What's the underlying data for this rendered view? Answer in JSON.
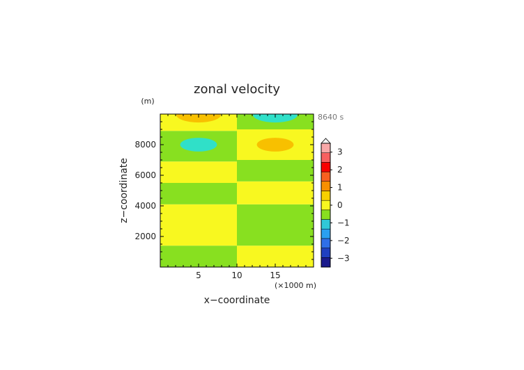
{
  "chart_data": {
    "type": "heatmap",
    "title": "zonal velocity",
    "xlabel": "x−coordinate",
    "ylabel": "z−coordinate",
    "x_unit": "(×1000 m)",
    "y_unit": "(m)",
    "time_label": "8640 s",
    "xlim": [
      0,
      20
    ],
    "ylim": [
      0,
      10000
    ],
    "x_ticks": [
      5,
      10,
      15
    ],
    "x_tick_labels": [
      "5",
      "10",
      "15"
    ],
    "y_ticks": [
      2000,
      4000,
      6000,
      8000
    ],
    "y_tick_labels": [
      "2000",
      "4000",
      "6000",
      "8000"
    ],
    "colorbar": {
      "range": [
        -3.5,
        3.5
      ],
      "step": 0.5,
      "ticks": [
        -3,
        -2,
        -1,
        0,
        1,
        2,
        3
      ],
      "tick_labels": [
        "−3",
        "−2",
        "−1",
        "0",
        "1",
        "2",
        "3"
      ],
      "colors": [
        "#1a1a8c",
        "#1f3fc0",
        "#2f6fe8",
        "#2aa0f0",
        "#30c8d8",
        "#88e020",
        "#f8f820",
        "#f8d000",
        "#f89000",
        "#f86020",
        "#f80000",
        "#f86060",
        "#f8a8a8"
      ],
      "extend": "max"
    },
    "bands_left": [
      {
        "z": [
          0,
          1400
        ],
        "value": 0.2,
        "color": "#88e020"
      },
      {
        "z": [
          1400,
          4100
        ],
        "value": -0.2,
        "color": "#f8f820"
      },
      {
        "z": [
          4100,
          5500
        ],
        "value": 0.2,
        "color": "#88e020"
      },
      {
        "z": [
          5500,
          6900
        ],
        "value": -0.2,
        "color": "#f8f820"
      },
      {
        "z": [
          6900,
          8900
        ],
        "value": 0.2,
        "color": "#88e020"
      },
      {
        "z": [
          8900,
          10000
        ],
        "value": -0.2,
        "color": "#f8f820"
      }
    ],
    "bands_right": [
      {
        "z": [
          0,
          1400
        ],
        "value": -0.2,
        "color": "#f8f820"
      },
      {
        "z": [
          1400,
          4100
        ],
        "value": 0.2,
        "color": "#88e020"
      },
      {
        "z": [
          4100,
          5600
        ],
        "value": -0.2,
        "color": "#f8f820"
      },
      {
        "z": [
          5600,
          7000
        ],
        "value": 0.2,
        "color": "#88e020"
      },
      {
        "z": [
          7000,
          9000
        ],
        "value": -0.2,
        "color": "#f8f820"
      },
      {
        "z": [
          9000,
          10000
        ],
        "value": 0.2,
        "color": "#88e020"
      }
    ],
    "blobs": [
      {
        "x": 5,
        "z": 8000,
        "rx": 2.4,
        "rz": 450,
        "value": -0.7,
        "color": "#30e0c8"
      },
      {
        "x": 15,
        "z": 8000,
        "rx": 2.4,
        "rz": 450,
        "value": 0.7,
        "color": "#f8c000"
      },
      {
        "x": 5,
        "z": 9950,
        "rx": 2.9,
        "rz": 500,
        "value": 0.7,
        "color": "#f8c000"
      },
      {
        "x": 15,
        "z": 9950,
        "rx": 2.9,
        "rz": 500,
        "value": -0.7,
        "color": "#30e0c8"
      }
    ]
  }
}
